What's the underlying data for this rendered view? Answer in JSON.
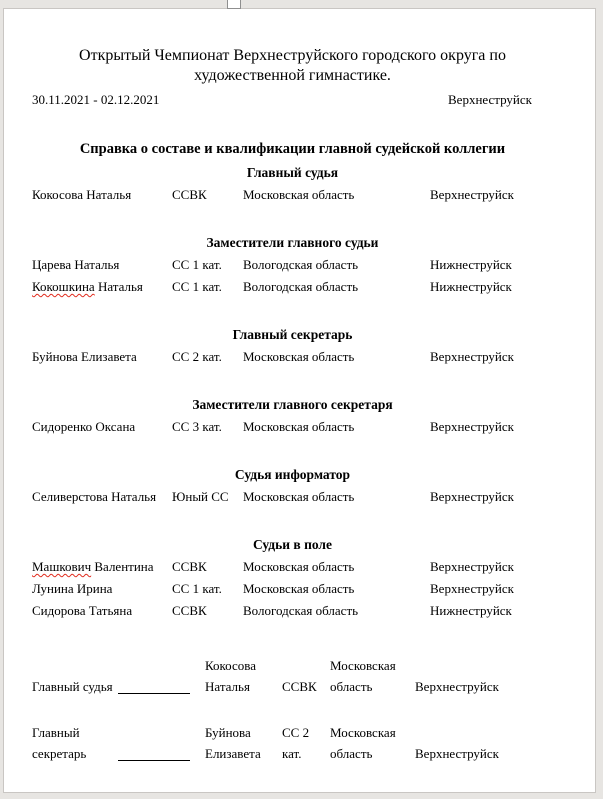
{
  "header": {
    "title_line1": "Открытый Чемпионат Верхнеструйского городского округа по",
    "title_line2": "художественной гимнастике.",
    "date_range": "30.11.2021 - 02.12.2021",
    "city": "Верхнеструйск"
  },
  "report_title": "Справка о составе и квалификации главной судейской коллегии",
  "sections": [
    {
      "heading": "Главный судья",
      "rows": [
        {
          "name": "Кокосова Наталья",
          "misspelled_first_word": false,
          "category": "ССВК",
          "region": "Московская область",
          "city": "Верхнеструйск"
        }
      ]
    },
    {
      "heading": "Заместители главного судьи",
      "rows": [
        {
          "name": "Царева Наталья",
          "misspelled_first_word": false,
          "category": "СС 1 кат.",
          "region": "Вологодская область",
          "city": "Нижнеструйск"
        },
        {
          "name": "Кокошкина Наталья",
          "misspelled_first_word": true,
          "category": "СС 1 кат.",
          "region": "Вологодская область",
          "city": "Нижнеструйск"
        }
      ]
    },
    {
      "heading": "Главный секретарь",
      "rows": [
        {
          "name": "Буйнова Елизавета",
          "misspelled_first_word": false,
          "category": "СС 2 кат.",
          "region": "Московская область",
          "city": "Верхнеструйск"
        }
      ]
    },
    {
      "heading": "Заместители главного секретаря",
      "rows": [
        {
          "name": "Сидоренко Оксана",
          "misspelled_first_word": false,
          "category": "СС 3 кат.",
          "region": "Московская область",
          "city": "Верхнеструйск"
        }
      ]
    },
    {
      "heading": "Судья информатор",
      "rows": [
        {
          "name": "Селиверстова Наталья",
          "misspelled_first_word": false,
          "category": "Юный СС",
          "region": "Московская область",
          "city": "Верхнеструйск"
        }
      ]
    },
    {
      "heading": "Судьи в поле",
      "rows": [
        {
          "name": "Машкович Валентина",
          "misspelled_first_word": true,
          "category": "ССВК",
          "region": "Московская область",
          "city": "Верхнеструйск"
        },
        {
          "name": "Лунина Ирина",
          "misspelled_first_word": false,
          "category": "СС 1 кат.",
          "region": "Московская область",
          "city": "Верхнеструйск"
        },
        {
          "name": "Сидорова Татьяна",
          "misspelled_first_word": false,
          "category": "ССВК",
          "region": "Вологодская область",
          "city": "Нижнеструйск"
        }
      ]
    }
  ],
  "signatures": [
    {
      "role": "Главный судья",
      "name": "Кокосова Наталья",
      "category": "ССВК",
      "region": "Московская область",
      "city": "Верхнеструйск"
    },
    {
      "role": "Главный секретарь",
      "name": "Буйнова Елизавета",
      "category": "СС 2 кат.",
      "region": "Московская область",
      "city": "Верхнеструйск"
    }
  ],
  "colors": {
    "canvas_background": "#e7e5e2",
    "page_background": "#ffffff",
    "page_border": "#c9c6c3",
    "text": "#000000",
    "spellcheck_underline": "#e02b1d"
  },
  "icons": {
    "page_gap_marker": "page-gap-marker"
  }
}
